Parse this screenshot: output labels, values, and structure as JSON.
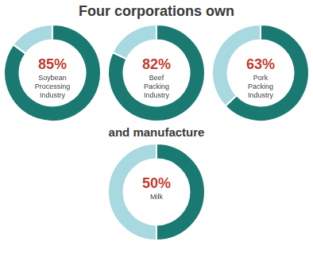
{
  "title": "Four corporations own",
  "subtitle": "and manufacture",
  "chart_data": [
    {
      "type": "doughnut",
      "values": [
        85,
        15
      ],
      "colors": [
        "#1a7a72",
        "#a8d8e0"
      ],
      "data_labels": true,
      "value_labels": [
        "85%",
        null
      ],
      "annotation": "Soybean\nProcessing\nIndustry"
    },
    {
      "type": "doughnut",
      "values": [
        82,
        18
      ],
      "colors": [
        "#1a7a72",
        "#a8d8e0"
      ],
      "data_labels": true,
      "value_labels": [
        "82%",
        null
      ],
      "annotation": "Beef\nPacking\nIndustry"
    },
    {
      "type": "doughnut",
      "values": [
        63,
        37
      ],
      "colors": [
        "#1a7a72",
        "#a8d8e0"
      ],
      "data_labels": true,
      "value_labels": [
        "63%",
        null
      ],
      "annotation": "Pork\nPacking\nIndustry"
    },
    {
      "type": "doughnut",
      "values": [
        50,
        50
      ],
      "colors": [
        "#1a7a72",
        "#a8d8e0"
      ],
      "data_labels": true,
      "value_labels": [
        "50%",
        null
      ],
      "annotation": "Milk"
    }
  ]
}
